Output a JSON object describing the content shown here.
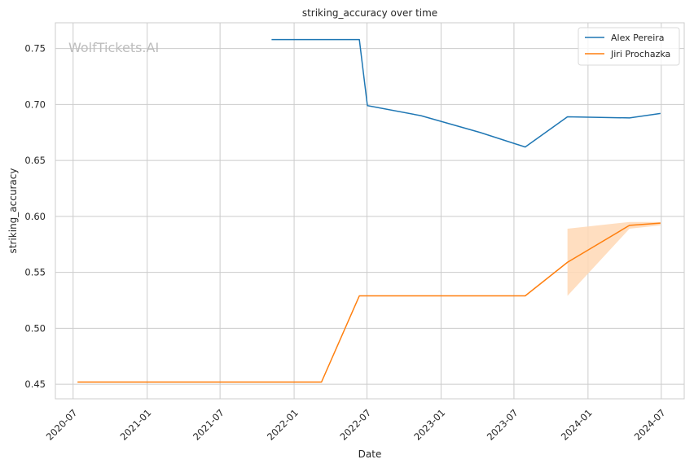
{
  "chart_data": {
    "type": "line",
    "title": "striking_accuracy over time",
    "xlabel": "Date",
    "ylabel": "striking_accuracy",
    "watermark": "WolfTickets.AI",
    "ylim": [
      0.437,
      0.773
    ],
    "xlim": [
      "2020-05-18",
      "2024-08-27"
    ],
    "x_ticks": [
      "2020-07",
      "2021-01",
      "2021-07",
      "2022-01",
      "2022-07",
      "2023-01",
      "2023-07",
      "2024-01",
      "2024-07"
    ],
    "y_ticks": [
      "0.45",
      "0.50",
      "0.55",
      "0.60",
      "0.65",
      "0.70",
      "0.75"
    ],
    "grid": true,
    "legend_position": "top-right",
    "series": [
      {
        "name": "Alex Pereira",
        "color": "#1f77b4",
        "points": [
          {
            "date": "2021-11-06",
            "value": 0.758
          },
          {
            "date": "2022-06-12",
            "value": 0.758
          },
          {
            "date": "2022-07-02",
            "value": 0.699
          },
          {
            "date": "2022-11-12",
            "value": 0.69
          },
          {
            "date": "2023-04-08",
            "value": 0.675
          },
          {
            "date": "2023-07-29",
            "value": 0.662
          },
          {
            "date": "2023-11-11",
            "value": 0.689
          },
          {
            "date": "2024-04-13",
            "value": 0.688
          },
          {
            "date": "2024-06-29",
            "value": 0.692
          }
        ]
      },
      {
        "name": "Jiri Prochazka",
        "color": "#ff7f0e",
        "band_color": "#ffd8b5",
        "points": [
          {
            "date": "2020-07-12",
            "value": 0.452
          },
          {
            "date": "2022-03-10",
            "value": 0.452
          },
          {
            "date": "2022-06-12",
            "value": 0.529
          },
          {
            "date": "2023-07-29",
            "value": 0.529
          },
          {
            "date": "2023-11-11",
            "value": 0.559,
            "lo": 0.529,
            "hi": 0.589
          },
          {
            "date": "2024-04-13",
            "value": 0.592,
            "lo": 0.589,
            "hi": 0.595
          },
          {
            "date": "2024-06-29",
            "value": 0.594,
            "lo": 0.592,
            "hi": 0.595
          }
        ]
      }
    ]
  }
}
